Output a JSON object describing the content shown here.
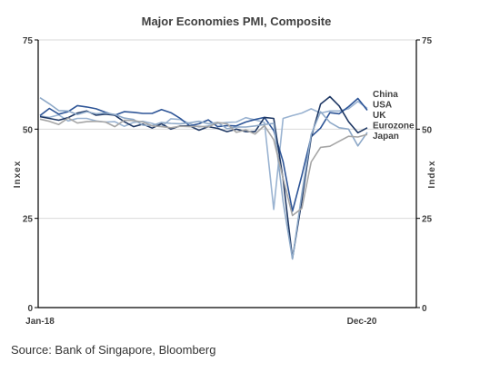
{
  "source_note": "Source: Bank of Singapore, Bloomberg",
  "chart_data": {
    "type": "line",
    "title": "Major Economies PMI, Composite",
    "ylabel_left": "Inxex",
    "ylabel_right": "Index",
    "ylim": [
      0,
      75
    ],
    "yticks": [
      "0",
      "25",
      "50",
      "75"
    ],
    "x_tick_labels": [
      "Jan-18",
      "Dec-20"
    ],
    "n_periods": 36,
    "colors": {
      "axis": "#000000",
      "grid": "#d9d9d9"
    },
    "legend_placement": "right",
    "series": [
      {
        "name": "China",
        "color": "#9ab3d1",
        "values": [
          53.7,
          53.3,
          54.0,
          52.3,
          53.0,
          53.0,
          52.3,
          52.0,
          52.1,
          50.8,
          51.9,
          52.2,
          51.6,
          50.7,
          52.9,
          52.7,
          51.5,
          50.6,
          50.9,
          51.6,
          51.9,
          52.0,
          53.2,
          52.6,
          51.9,
          27.5,
          53.0,
          53.8,
          54.5,
          55.7,
          54.5,
          55.1,
          55.1,
          55.7,
          57.8,
          55.8
        ]
      },
      {
        "name": "USA",
        "color": "#2e5597",
        "values": [
          53.8,
          55.8,
          54.2,
          54.9,
          56.6,
          56.2,
          55.7,
          54.7,
          53.9,
          54.9,
          54.7,
          54.4,
          54.4,
          55.5,
          54.6,
          53.0,
          50.9,
          51.5,
          52.6,
          50.7,
          51.0,
          50.9,
          52.0,
          52.7,
          53.3,
          49.6,
          40.9,
          27.0,
          37.0,
          47.9,
          50.3,
          54.6,
          54.3,
          56.3,
          58.6,
          55.3
        ]
      },
      {
        "name": "UK",
        "color": "#1f3864",
        "values": [
          53.5,
          53.0,
          52.5,
          53.2,
          54.5,
          55.1,
          53.9,
          54.2,
          53.9,
          52.1,
          50.7,
          51.4,
          50.3,
          51.5,
          50.0,
          50.9,
          50.9,
          49.7,
          50.7,
          50.2,
          49.3,
          50.0,
          49.3,
          49.3,
          53.3,
          53.0,
          36.0,
          13.8,
          30.0,
          47.7,
          57.0,
          59.1,
          56.5,
          52.1,
          49.0,
          50.4
        ]
      },
      {
        "name": "Eurozone",
        "color": "#8ea9c8",
        "values": [
          58.8,
          57.1,
          55.2,
          55.1,
          54.1,
          54.9,
          54.3,
          54.5,
          54.1,
          53.1,
          52.7,
          51.1,
          51.0,
          51.9,
          51.6,
          51.5,
          51.8,
          52.2,
          51.5,
          51.9,
          50.1,
          50.6,
          50.6,
          50.9,
          51.3,
          51.6,
          29.7,
          13.6,
          31.9,
          48.5,
          54.9,
          51.9,
          50.4,
          50.0,
          45.3,
          49.1
        ]
      },
      {
        "name": "Japan",
        "color": "#a6a6a6",
        "values": [
          52.8,
          52.2,
          51.3,
          53.1,
          51.7,
          52.1,
          52.2,
          52.0,
          50.7,
          52.5,
          52.4,
          52.0,
          50.9,
          50.7,
          50.4,
          50.8,
          50.7,
          50.8,
          50.6,
          51.9,
          51.5,
          49.1,
          49.8,
          48.6,
          51.0,
          47.0,
          36.2,
          25.8,
          27.8,
          40.8,
          44.9,
          45.2,
          46.6,
          48.0,
          47.8,
          48.5
        ]
      }
    ]
  }
}
